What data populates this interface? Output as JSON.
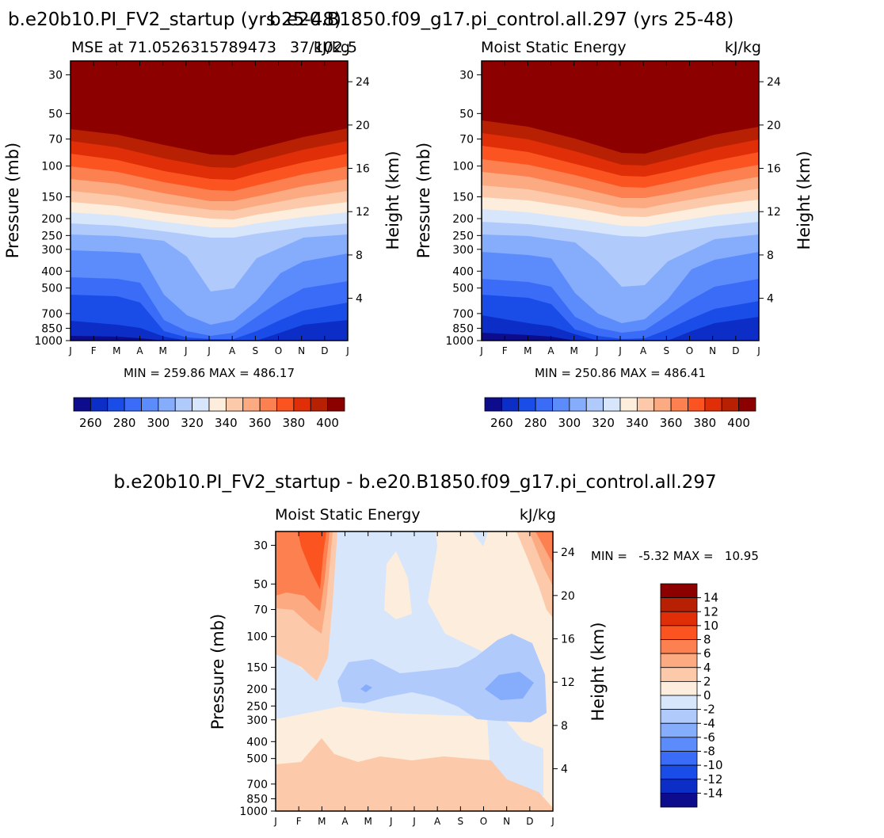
{
  "chart_data": [
    {
      "type": "heatmap",
      "title": "b.e20b10.PI_FV2_startup (yrs 25-48)",
      "subtitle_left": "MSE at 71.0526315789473",
      "subtitle_right": "kJ/kg",
      "subtitle_extra": "37/102.5",
      "ylabel": "Pressure (mb)",
      "ylabel_right": "Height (km)",
      "months": [
        "J",
        "F",
        "M",
        "A",
        "M",
        "J",
        "J",
        "A",
        "S",
        "O",
        "N",
        "D",
        "J"
      ],
      "pressure_ticks": [
        "30",
        "50",
        "70",
        "100",
        "150",
        "200",
        "250",
        "300",
        "400",
        "500",
        "700",
        "850",
        "1000"
      ],
      "height_ticks": [
        "24",
        "20",
        "16",
        "12",
        "8",
        "4"
      ],
      "min_max_text": "MIN = 259.86 MAX = 486.17",
      "min": 259.86,
      "max": 486.17,
      "contour_levels": [
        260,
        270,
        280,
        290,
        300,
        310,
        320,
        330,
        340,
        350,
        360,
        370,
        380,
        390,
        400
      ],
      "colorbar_labels": [
        "260",
        "280",
        "300",
        "320",
        "340",
        "360",
        "380",
        "400"
      ],
      "colorbar_colors": [
        "#0c0c8c",
        "#0c2ec6",
        "#1a4ce8",
        "#3a6cf8",
        "#5c8cfc",
        "#86acfc",
        "#b0cafc",
        "#d8e6fc",
        "#fdeddc",
        "#fccaaa",
        "#fcaa82",
        "#fc8050",
        "#fc5420",
        "#e02e08",
        "#b82004",
        "#8c0000"
      ]
    },
    {
      "type": "heatmap",
      "title": "b.e20.B1850.f09_g17.pi_control.all.297 (yrs 25-48)",
      "subtitle_left": "Moist Static Energy",
      "subtitle_right": "kJ/kg",
      "ylabel": "Pressure (mb)",
      "ylabel_right": "Height (km)",
      "months": [
        "J",
        "F",
        "M",
        "A",
        "M",
        "J",
        "J",
        "A",
        "S",
        "O",
        "N",
        "D",
        "J"
      ],
      "pressure_ticks": [
        "30",
        "50",
        "70",
        "100",
        "150",
        "200",
        "250",
        "300",
        "400",
        "500",
        "700",
        "850",
        "1000"
      ],
      "height_ticks": [
        "24",
        "20",
        "16",
        "12",
        "8",
        "4"
      ],
      "min_max_text": "MIN = 250.86 MAX = 486.41",
      "min": 250.86,
      "max": 486.41,
      "contour_levels": [
        260,
        270,
        280,
        290,
        300,
        310,
        320,
        330,
        340,
        350,
        360,
        370,
        380,
        390,
        400
      ],
      "colorbar_labels": [
        "260",
        "280",
        "300",
        "320",
        "340",
        "360",
        "380",
        "400"
      ],
      "colorbar_colors": [
        "#0c0c8c",
        "#0c2ec6",
        "#1a4ce8",
        "#3a6cf8",
        "#5c8cfc",
        "#86acfc",
        "#b0cafc",
        "#d8e6fc",
        "#fdeddc",
        "#fccaaa",
        "#fcaa82",
        "#fc8050",
        "#fc5420",
        "#e02e08",
        "#b82004",
        "#8c0000"
      ]
    },
    {
      "type": "heatmap",
      "title": "b.e20b10.PI_FV2_startup - b.e20.B1850.f09_g17.pi_control.all.297",
      "subtitle_left": "Moist Static Energy",
      "subtitle_right": "kJ/kg",
      "ylabel": "Pressure (mb)",
      "ylabel_right": "Height (km)",
      "months": [
        "J",
        "F",
        "M",
        "A",
        "M",
        "J",
        "J",
        "A",
        "S",
        "O",
        "N",
        "D",
        "J"
      ],
      "pressure_ticks": [
        "30",
        "50",
        "70",
        "100",
        "150",
        "200",
        "250",
        "300",
        "400",
        "500",
        "700",
        "850",
        "1000"
      ],
      "height_ticks": [
        "24",
        "20",
        "16",
        "12",
        "8",
        "4"
      ],
      "min_max_text": "MIN =   -5.32 MAX =   10.95",
      "min": -5.32,
      "max": 10.95,
      "contour_levels": [
        -14,
        -12,
        -10,
        -8,
        -6,
        -4,
        -2,
        0,
        2,
        4,
        6,
        8,
        10,
        12,
        14
      ],
      "colorbar_labels": [
        "14",
        "12",
        "10",
        "8",
        "6",
        "4",
        "2",
        "0",
        "-2",
        "-4",
        "-6",
        "-8",
        "-10",
        "-12",
        "-14"
      ],
      "colorbar_colors": [
        "#8c0000",
        "#b82004",
        "#e02e08",
        "#fc5420",
        "#fc8050",
        "#fcaa82",
        "#fccaaa",
        "#fdeddc",
        "#d8e6fc",
        "#b0cafc",
        "#86acfc",
        "#5c8cfc",
        "#3a6cf8",
        "#1a4ce8",
        "#0c2ec6",
        "#0c0c8c"
      ]
    }
  ]
}
